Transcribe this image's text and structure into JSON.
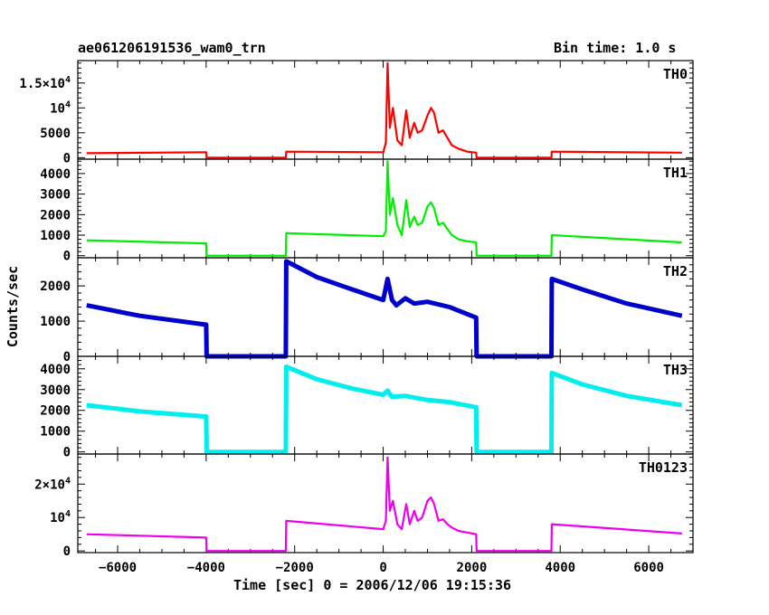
{
  "chart_data": {
    "type": "line",
    "title": "ae061206191536_wam0_trn",
    "subtitle": "Bin time: 1.0 s",
    "xlabel": "Time [sec] 0 = 2006/12/06 19:15:36",
    "ylabel": "Counts/sec",
    "xlim": [
      -6900,
      7000
    ],
    "x_ticks": [
      -6000,
      -4000,
      -2000,
      0,
      2000,
      4000,
      6000
    ],
    "x_tick_labels": [
      "−6000",
      "−4000",
      "−2000",
      "0",
      "2000",
      "4000",
      "6000"
    ],
    "grid": false,
    "panels": [
      {
        "name": "TH0",
        "color": "#ff0000",
        "ylim": [
          -300,
          19500
        ],
        "y_ticks": [
          0,
          5000,
          10000,
          15000
        ],
        "y_tick_labels": [
          "0",
          "5000",
          "10^4",
          "1.5×10^4"
        ],
        "x": [
          -6700,
          -4000,
          -3990,
          -2200,
          -2190,
          0,
          60,
          100,
          150,
          220,
          320,
          420,
          520,
          600,
          700,
          780,
          880,
          1000,
          1080,
          1150,
          1250,
          1350,
          1450,
          1550,
          1700,
          1900,
          2100,
          2110,
          3800,
          3810,
          6750
        ],
        "values": [
          900,
          1100,
          0,
          0,
          1200,
          1100,
          3000,
          19000,
          6000,
          10000,
          3500,
          2500,
          9500,
          4000,
          7000,
          5000,
          5500,
          8500,
          10000,
          9000,
          5000,
          5500,
          4000,
          2500,
          1800,
          1200,
          1000,
          0,
          0,
          1200,
          1000
        ]
      },
      {
        "name": "TH1",
        "color": "#00ee00",
        "ylim": [
          -100,
          4700
        ],
        "y_ticks": [
          0,
          1000,
          2000,
          3000,
          4000
        ],
        "y_tick_labels": [
          "0",
          "1000",
          "2000",
          "3000",
          "4000"
        ],
        "x": [
          -6700,
          -4000,
          -3990,
          -2200,
          -2190,
          0,
          60,
          100,
          150,
          220,
          320,
          420,
          520,
          600,
          700,
          780,
          880,
          1000,
          1080,
          1150,
          1250,
          1350,
          1450,
          1550,
          1700,
          1900,
          2100,
          2110,
          3800,
          3810,
          6750
        ],
        "values": [
          750,
          600,
          0,
          0,
          1100,
          950,
          1200,
          4600,
          2000,
          2800,
          1500,
          1000,
          2700,
          1400,
          1900,
          1500,
          1600,
          2400,
          2600,
          2300,
          1500,
          1600,
          1300,
          1000,
          800,
          700,
          650,
          0,
          0,
          1000,
          650
        ]
      },
      {
        "name": "TH2",
        "color": "#0000cc",
        "ylim": [
          0,
          2800
        ],
        "y_ticks": [
          0,
          1000,
          2000
        ],
        "y_tick_labels": [
          "0",
          "1000",
          "2000"
        ],
        "x": [
          -6700,
          -5500,
          -4000,
          -3990,
          -2200,
          -2190,
          -1500,
          -700,
          0,
          100,
          200,
          300,
          500,
          700,
          1000,
          1500,
          2100,
          2110,
          3800,
          3810,
          4500,
          5500,
          6750
        ],
        "values": [
          1450,
          1150,
          900,
          0,
          0,
          2700,
          2250,
          1900,
          1600,
          2200,
          1600,
          1450,
          1650,
          1500,
          1550,
          1400,
          1100,
          0,
          0,
          2200,
          1900,
          1500,
          1150
        ]
      },
      {
        "name": "TH3",
        "color": "#00eeee",
        "ylim": [
          -100,
          4600
        ],
        "y_ticks": [
          0,
          1000,
          2000,
          3000,
          4000
        ],
        "y_tick_labels": [
          "0",
          "1000",
          "2000",
          "3000",
          "4000"
        ],
        "x": [
          -6700,
          -5500,
          -4000,
          -3990,
          -2200,
          -2190,
          -1500,
          -700,
          0,
          100,
          200,
          500,
          1000,
          1500,
          2100,
          2110,
          3800,
          3810,
          4500,
          5500,
          6750
        ],
        "values": [
          2250,
          1950,
          1700,
          0,
          0,
          4100,
          3500,
          3050,
          2750,
          2950,
          2650,
          2700,
          2500,
          2400,
          2150,
          0,
          0,
          3800,
          3250,
          2700,
          2250
        ]
      },
      {
        "name": "TH0123",
        "color": "#ee00ee",
        "ylim": [
          -500,
          29000
        ],
        "y_ticks": [
          0,
          10000,
          20000
        ],
        "y_tick_labels": [
          "0",
          "10^4",
          "2×10^4"
        ],
        "x": [
          -6700,
          -4000,
          -3990,
          -2200,
          -2190,
          0,
          60,
          100,
          150,
          220,
          320,
          420,
          520,
          600,
          700,
          780,
          880,
          1000,
          1080,
          1150,
          1250,
          1350,
          1450,
          1550,
          1700,
          1900,
          2100,
          2110,
          3800,
          3810,
          6750
        ],
        "values": [
          5000,
          4000,
          0,
          0,
          9000,
          6500,
          9000,
          28000,
          12000,
          15000,
          8000,
          6500,
          14000,
          8000,
          12000,
          9000,
          10000,
          15000,
          16000,
          14000,
          9000,
          9500,
          8000,
          7000,
          6000,
          5500,
          5000,
          0,
          0,
          8000,
          5200
        ]
      }
    ]
  }
}
